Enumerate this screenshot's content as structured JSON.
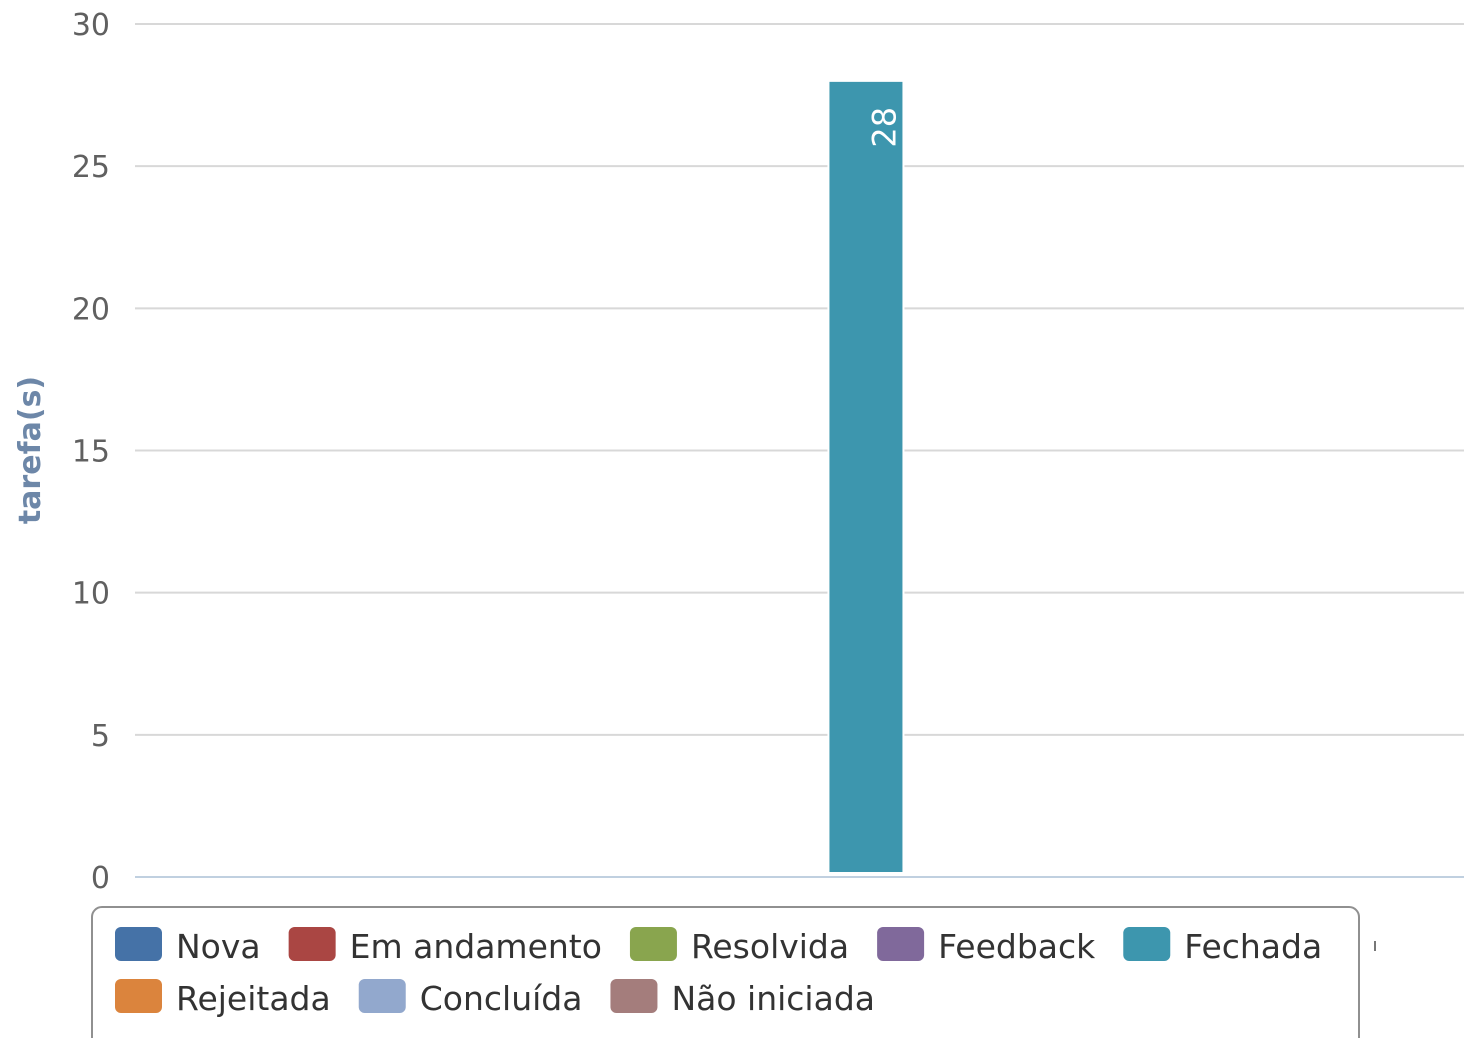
{
  "chart_data": {
    "type": "bar",
    "ylabel": "tarefa(s)",
    "ylim": [
      0,
      30
    ],
    "yticks": [
      0,
      5,
      10,
      15,
      20,
      25,
      30
    ],
    "grid": true,
    "legend_position": "bottom",
    "series": [
      {
        "name": "Nova",
        "color": "#4572a7",
        "values": [
          0
        ]
      },
      {
        "name": "Em andamento",
        "color": "#aa4643",
        "values": [
          0
        ]
      },
      {
        "name": "Resolvida",
        "color": "#89a54e",
        "values": [
          0
        ]
      },
      {
        "name": "Feedback",
        "color": "#80699b",
        "values": [
          0
        ]
      },
      {
        "name": "Fechada",
        "color": "#3d96ae",
        "values": [
          28
        ]
      },
      {
        "name": "Rejeitada",
        "color": "#db843d",
        "values": [
          0
        ]
      },
      {
        "name": "Concluída",
        "color": "#92a8cd",
        "values": [
          0
        ]
      },
      {
        "name": "Não iniciada",
        "color": "#a47d7c",
        "values": [
          0
        ]
      }
    ]
  }
}
